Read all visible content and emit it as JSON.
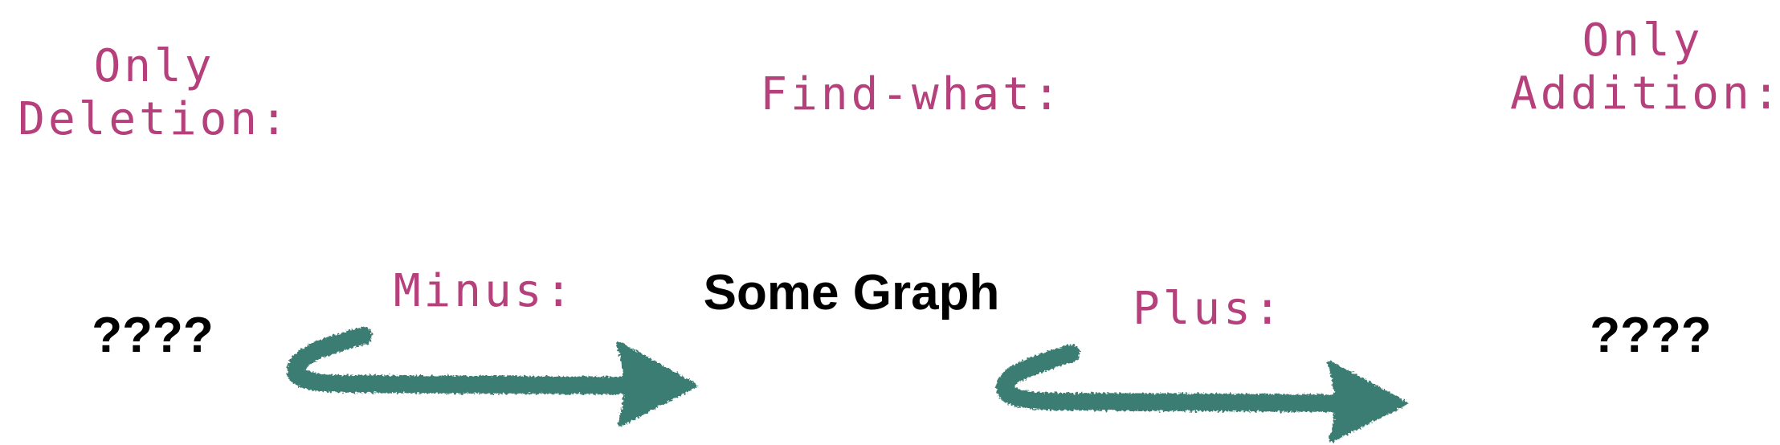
{
  "labels": {
    "only_deletion": "Only\nDeletion:",
    "find_what": "Find-what:",
    "only_addition": "Only\nAddition:",
    "minus": "Minus:",
    "plus": "Plus:",
    "some_graph": "Some Graph",
    "left_unknown": "????",
    "right_unknown": "????"
  },
  "colors": {
    "label_color": "#b5407c",
    "arrow_color": "#3a7d72",
    "text_color": "#000000"
  },
  "icons": {
    "minus_arrow": "hand-drawn-arrow-icon",
    "plus_arrow": "hand-drawn-arrow-icon"
  }
}
